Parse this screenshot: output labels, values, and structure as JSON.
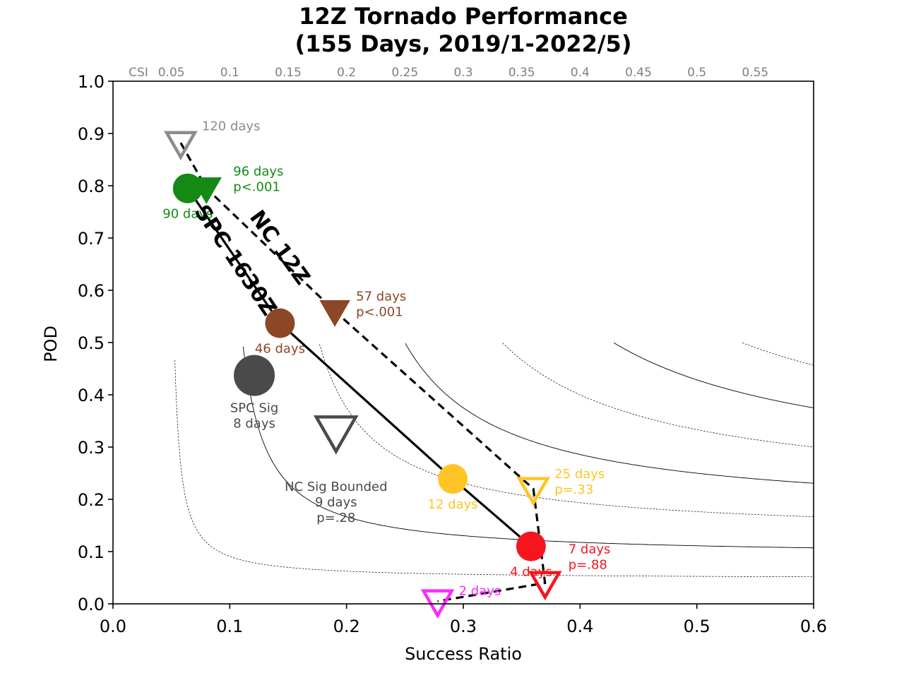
{
  "chart_data": {
    "type": "scatter",
    "title": [
      "12Z Tornado Performance",
      "(155 Days, 2019/1-2022/5)"
    ],
    "xlabel": "Success Ratio",
    "ylabel": "POD",
    "xlim": [
      0.0,
      0.6
    ],
    "ylim": [
      0.0,
      1.0
    ],
    "x_ticks": [
      "0.0",
      "0.1",
      "0.2",
      "0.3",
      "0.4",
      "0.5",
      "0.6"
    ],
    "y_ticks": [
      "0.0",
      "0.1",
      "0.2",
      "0.3",
      "0.4",
      "0.5",
      "0.6",
      "0.7",
      "0.8",
      "0.9",
      "1.0"
    ],
    "csi_label": "CSI",
    "csi_levels": [
      0.05,
      0.1,
      0.15,
      0.2,
      0.25,
      0.3,
      0.35,
      0.4,
      0.45,
      0.5,
      0.55
    ],
    "csi_tick_labels": [
      "0.05",
      "0.1",
      "0.15",
      "0.2",
      "0.25",
      "0.3",
      "0.35",
      "0.4",
      "0.45",
      "0.5",
      "0.55"
    ],
    "series": [
      {
        "name": "SPC 1630Z",
        "marker": "circle",
        "line": "solid",
        "points": [
          {
            "x": 0.064,
            "y": 0.795,
            "color": "#148a14",
            "labels": [
              "90 days"
            ]
          },
          {
            "x": 0.143,
            "y": 0.537,
            "color": "#8b4726",
            "labels": [
              "46 days"
            ]
          },
          {
            "x": 0.291,
            "y": 0.239,
            "color": "#ffc526",
            "labels": [
              "12 days"
            ]
          },
          {
            "x": 0.358,
            "y": 0.11,
            "color": "#f5151e",
            "labels": [
              "4 days"
            ]
          }
        ]
      },
      {
        "name": "NC 12Z",
        "marker": "triangle-down",
        "line": "dashed",
        "points": [
          {
            "x": 0.058,
            "y": 0.882,
            "color": "#8c8c8c",
            "filled": false,
            "labels": [
              "120 days"
            ]
          },
          {
            "x": 0.08,
            "y": 0.795,
            "color": "#148a14",
            "filled": true,
            "labels": [
              "96 days",
              "p<.001"
            ]
          },
          {
            "x": 0.19,
            "y": 0.56,
            "color": "#8b4726",
            "filled": true,
            "labels": [
              "57 days",
              "p<.001"
            ]
          },
          {
            "x": 0.36,
            "y": 0.22,
            "color": "#ffc526",
            "filled": false,
            "labels": [
              "25 days",
              "p=.33"
            ]
          },
          {
            "x": 0.37,
            "y": 0.04,
            "color": "#f5151e",
            "filled": false,
            "labels": [
              "7 days",
              "p=.88"
            ]
          },
          {
            "x": 0.278,
            "y": 0.005,
            "color": "#ff29ff",
            "filled": false,
            "labels": [
              "2 days"
            ]
          }
        ]
      }
    ],
    "extra_points": [
      {
        "marker": "circle",
        "x": 0.121,
        "y": 0.437,
        "color": "#4a4a4a",
        "labels": [
          "SPC Sig",
          "8 days"
        ]
      },
      {
        "marker": "triangle-down",
        "x": 0.191,
        "y": 0.33,
        "color": "#4a4a4a",
        "filled": false,
        "labels": [
          "NC Sig Bounded",
          "9 days",
          "p=.28"
        ]
      }
    ]
  }
}
